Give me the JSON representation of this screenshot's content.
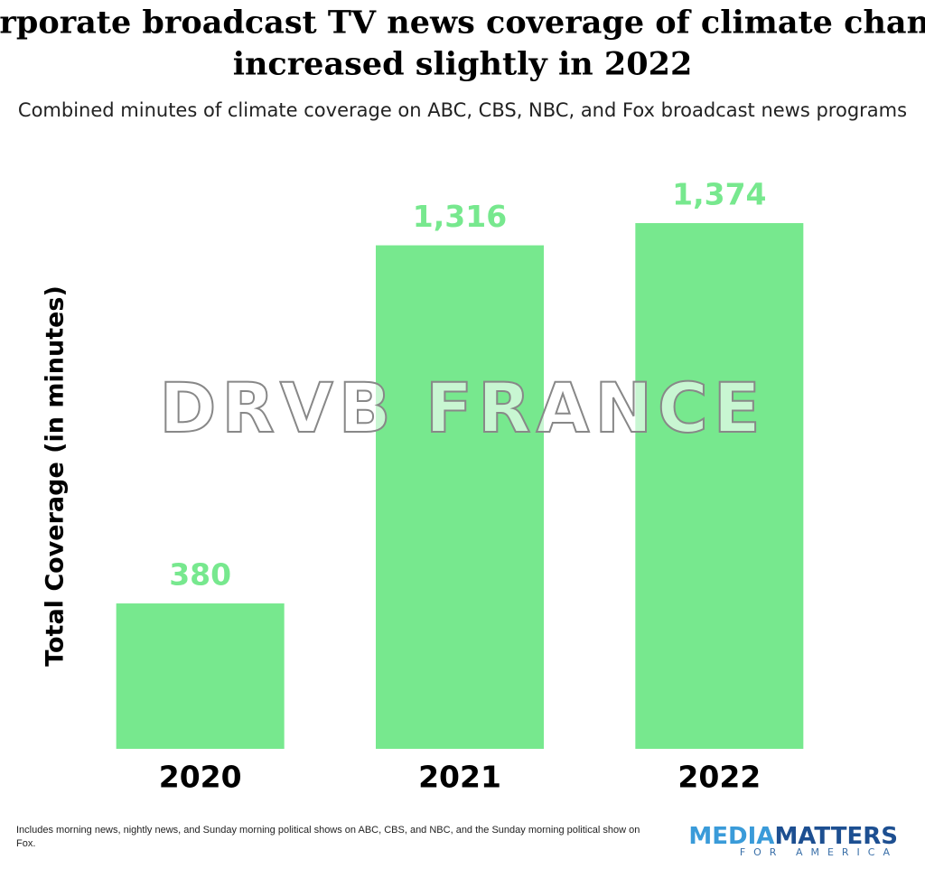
{
  "chart_data": {
    "type": "bar",
    "title": "Corporate broadcast TV news coverage of climate change",
    "title_line2": "increased slightly in 2022",
    "subtitle": "Combined minutes of climate coverage on ABC, CBS, NBC, and Fox broadcast news programs",
    "y_label": "Total Coverage (in minutes)",
    "categories": [
      "2020",
      "2021",
      "2022"
    ],
    "values": [
      380,
      1316,
      1374
    ],
    "value_labels": [
      "380",
      "1,316",
      "1,374"
    ],
    "color": "#77e88e",
    "ylim": [
      0,
      1400
    ],
    "watermark": "DRVB FRANCE",
    "note": "Includes morning news, nightly news, and Sunday morning political shows on ABC, CBS, and NBC, and the Sunday morning political show on Fox.",
    "logo": {
      "media": "MEDIA",
      "matters": "MATTERS",
      "tagline": "FOR AMERICA"
    }
  }
}
